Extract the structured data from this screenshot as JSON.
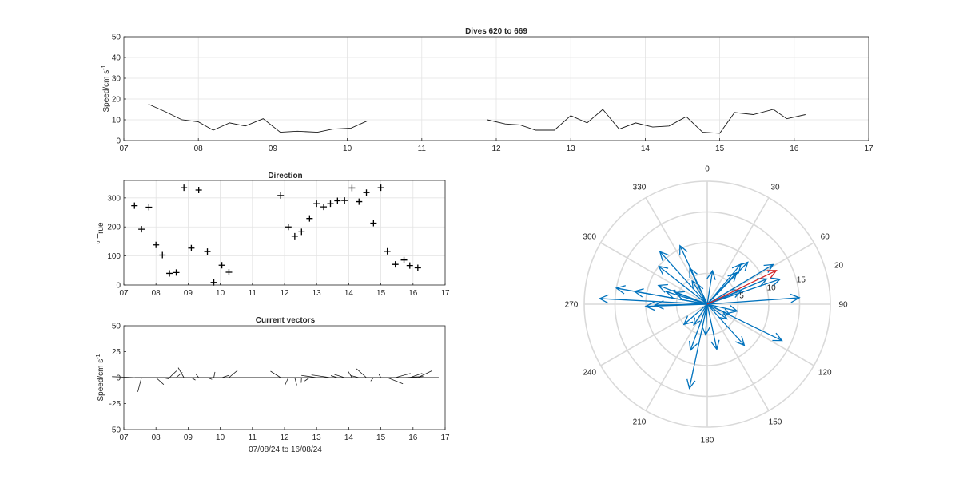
{
  "chart_data": [
    {
      "type": "line",
      "title": "Dives 620 to 669",
      "ylabel": "Speed/cm s",
      "ylabel_superscript": "-1",
      "ylim": [
        0,
        50
      ],
      "yticks": [
        0,
        10,
        20,
        30,
        40,
        50
      ],
      "xlim": [
        7,
        17
      ],
      "xticks": [
        7,
        8,
        9,
        10,
        11,
        12,
        13,
        14,
        15,
        16,
        17
      ],
      "xticklabels": [
        "07",
        "08",
        "09",
        "10",
        "11",
        "12",
        "13",
        "14",
        "15",
        "16",
        "17"
      ],
      "grid": true,
      "segments": [
        {
          "x": [
            7.33,
            7.55,
            7.78,
            8.0,
            8.2,
            8.42,
            8.63,
            8.87,
            9.1,
            9.33,
            9.6,
            9.8,
            10.05,
            10.27
          ],
          "y": [
            17.5,
            14,
            10,
            9,
            5,
            8.5,
            7,
            10.5,
            4,
            4.5,
            4,
            5.5,
            6,
            9.5
          ]
        },
        {
          "x": [
            11.88,
            12.12,
            12.32,
            12.53,
            12.78,
            13.0,
            13.22,
            13.43,
            13.65,
            13.87,
            14.1,
            14.32,
            14.55,
            14.77,
            15.0,
            15.2,
            15.45,
            15.72,
            15.9,
            16.15
          ],
          "y": [
            10,
            8,
            7.5,
            5,
            5,
            12,
            8.5,
            15,
            5.5,
            8.5,
            6.5,
            7,
            11.5,
            4,
            3.5,
            13.5,
            12.5,
            15,
            10.5,
            12.5
          ]
        }
      ]
    },
    {
      "type": "scatter",
      "title": "Direction",
      "ylabel": "True",
      "ylabel_prefix": "o",
      "ylim": [
        0,
        360
      ],
      "yticks": [
        0,
        100,
        200,
        300
      ],
      "xlim": [
        7,
        17
      ],
      "xticks": [
        7,
        8,
        9,
        10,
        11,
        12,
        13,
        14,
        15,
        16,
        17
      ],
      "xticklabels": [
        "07",
        "08",
        "09",
        "10",
        "11",
        "12",
        "13",
        "14",
        "15",
        "16",
        "17"
      ],
      "grid": true,
      "marker": "+",
      "x": [
        7.33,
        7.55,
        7.78,
        8.0,
        8.2,
        8.42,
        8.63,
        8.87,
        9.1,
        9.33,
        9.6,
        9.8,
        10.05,
        10.27,
        11.88,
        12.12,
        12.32,
        12.53,
        12.78,
        13.0,
        13.22,
        13.43,
        13.65,
        13.87,
        14.1,
        14.32,
        14.55,
        14.77,
        15.0,
        15.2,
        15.45,
        15.72,
        15.9,
        16.15
      ],
      "y": [
        273,
        192,
        268,
        138,
        103,
        40,
        43,
        335,
        127,
        327,
        115,
        9,
        68,
        44,
        308,
        200,
        168,
        183,
        229,
        280,
        269,
        280,
        290,
        291,
        334,
        287,
        318,
        213,
        335,
        116,
        71,
        86,
        67,
        59
      ]
    },
    {
      "type": "quiver",
      "title": "Current vectors",
      "ylabel": "Speed/cm s",
      "ylabel_superscript": "-1",
      "xlabel": "07/08/24 to 16/08/24",
      "ylim": [
        -50,
        50
      ],
      "yticks": [
        -50,
        -25,
        0,
        25,
        50
      ],
      "xlim": [
        7,
        17
      ],
      "xticks": [
        7,
        8,
        9,
        10,
        11,
        12,
        13,
        14,
        15,
        16,
        17
      ],
      "xticklabels": [
        "07",
        "08",
        "09",
        "10",
        "11",
        "12",
        "13",
        "14",
        "15",
        "16",
        "17"
      ],
      "grid": false,
      "baseline": 0
    },
    {
      "type": "compass",
      "angle_ticks": [
        "0",
        "30",
        "60",
        "90",
        "120",
        "150",
        "180",
        "210",
        "240",
        "270",
        "300",
        "330"
      ],
      "radial_ticks": [
        "5",
        "10",
        "15",
        "20"
      ],
      "rmax": 20,
      "vector_color": "#0072BD",
      "highlight_color": "#D62728",
      "highlight": {
        "dir": 64,
        "speed": 12.5
      }
    }
  ]
}
